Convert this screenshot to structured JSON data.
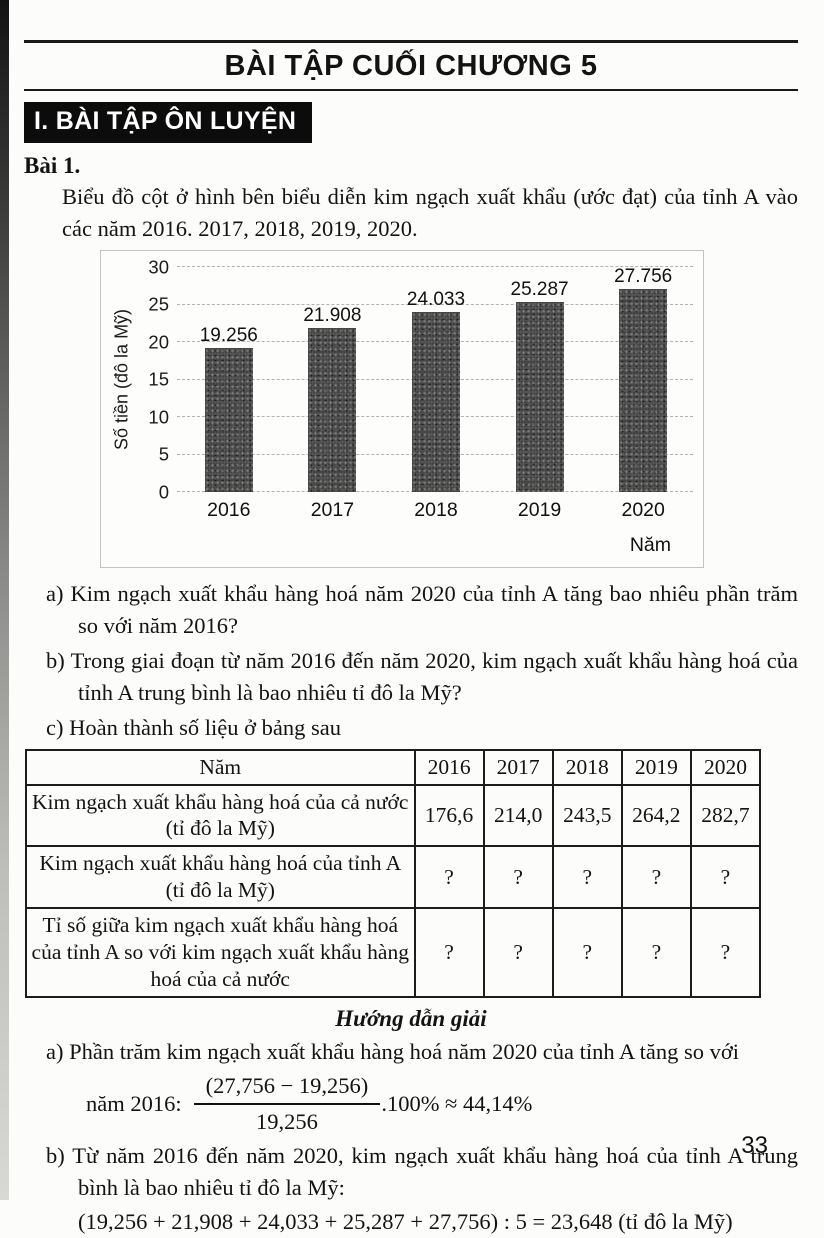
{
  "header": {
    "title": "BÀI TẬP CUỐI CHƯƠNG 5",
    "section": "I. BÀI TẬP ÔN LUYỆN"
  },
  "exercise": {
    "label": "Bài 1.",
    "intro": "Biểu đồ cột ở hình bên biểu diễn kim ngạch xuất khẩu (ước đạt) của tỉnh A vào các năm 2016. 2017, 2018, 2019, 2020."
  },
  "chart_data": {
    "type": "bar",
    "categories": [
      "2016",
      "2017",
      "2018",
      "2019",
      "2020"
    ],
    "values": [
      19.256,
      21.908,
      24.033,
      25.287,
      27.756
    ],
    "bar_labels": [
      "19.256",
      "21.908",
      "24.033",
      "25.287",
      "27.756"
    ],
    "title": "",
    "xlabel": "Năm",
    "ylabel": "Số tiền (đô la Mỹ)",
    "yticks": [
      0,
      5,
      10,
      15,
      20,
      25,
      30
    ],
    "ylim": [
      0,
      30
    ],
    "grid": "horizontal-dashed",
    "legend": "none",
    "bar_color": "#3d3d3d"
  },
  "questions": [
    {
      "label": "a)",
      "text": "Kim ngạch xuất khẩu hàng hoá năm 2020 của tỉnh A tăng bao nhiêu phần trăm so với năm 2016?"
    },
    {
      "label": "b)",
      "text": "Trong giai đoạn từ năm 2016 đến năm 2020, kim ngạch xuất khẩu hàng hoá của tỉnh A trung bình là bao nhiêu tỉ đô la Mỹ?"
    },
    {
      "label": "c)",
      "text": "Hoàn thành số liệu ở bảng sau"
    }
  ],
  "table": {
    "header": [
      "Năm",
      "2016",
      "2017",
      "2018",
      "2019",
      "2020"
    ],
    "rows": [
      {
        "label": "Kim ngạch xuất khẩu hàng hoá của cả nước (tỉ đô la Mỹ)",
        "values": [
          "176,6",
          "214,0",
          "243,5",
          "264,2",
          "282,7"
        ]
      },
      {
        "label": "Kim ngạch xuất khẩu hàng hoá của tỉnh A (tỉ đô la Mỹ)",
        "values": [
          "?",
          "?",
          "?",
          "?",
          "?"
        ]
      },
      {
        "label": "Tỉ số giữa kim ngạch xuất khẩu hàng hoá của tỉnh A so với kim ngạch xuất khẩu hàng hoá của cả nước",
        "values": [
          "?",
          "?",
          "?",
          "?",
          "?"
        ]
      }
    ]
  },
  "solution": {
    "title": "Hướng dẫn giải",
    "a": {
      "label": "a)",
      "text": "Phần trăm kim ngạch xuất khẩu hàng hoá năm 2020 của tỉnh A tăng so với",
      "formula_prefix": "năm 2016:",
      "numerator": "(27,756 − 19,256)",
      "denominator": "19,256",
      "formula_suffix": ".100% ≈ 44,14%"
    },
    "b": {
      "label": "b)",
      "text": "Từ năm 2016 đến năm 2020, kim ngạch xuất khẩu hàng hoá của tỉnh A trung bình là bao nhiêu tỉ đô la Mỹ:",
      "equation": "(19,256 + 21,908 + 24,033 + 25,287 + 27,756) : 5 = 23,648 (tỉ đô la Mỹ)"
    }
  },
  "page": {
    "number": "33"
  }
}
